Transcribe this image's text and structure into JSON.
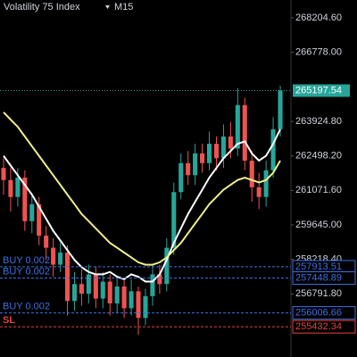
{
  "chart_data": {
    "type": "candlestick",
    "title": "Volatility 75 Index",
    "timeframe": "M15",
    "ylim": [
      254184,
      268943
    ],
    "yticks": [
      {
        "value": 268204.6,
        "label": "268204.60"
      },
      {
        "value": 266778,
        "label": "266778.00"
      },
      {
        "value": 263924.8,
        "label": "263924.80"
      },
      {
        "value": 262498.2,
        "label": "262498.20"
      },
      {
        "value": 261071.6,
        "label": "261071.60"
      },
      {
        "value": 259645,
        "label": "259645.00"
      },
      {
        "value": 258218.4,
        "label": "258218.40"
      },
      {
        "value": 256791.8,
        "label": "256791.80"
      }
    ],
    "up_color": "#26a69a",
    "down_color": "#ef5350",
    "open": [
      262000,
      261500,
      260800,
      261600,
      259800,
      260500,
      259200,
      258700,
      258000,
      258500,
      256500,
      257200,
      256800,
      257600,
      256600,
      257300,
      256400,
      257100,
      256200,
      256900,
      255800,
      256700,
      257600,
      257200,
      258700,
      261000,
      262200,
      261700,
      262600,
      262200,
      263000,
      262400,
      263300,
      262800,
      264600,
      262300,
      261200,
      260800,
      261900,
      263600
    ],
    "high": [
      262400,
      262000,
      262000,
      261900,
      260900,
      260800,
      259600,
      259100,
      258900,
      258800,
      257700,
      257800,
      258000,
      257900,
      257700,
      257600,
      257500,
      257400,
      257400,
      257100,
      257000,
      258000,
      258000,
      259100,
      261400,
      262600,
      262700,
      263000,
      263000,
      263500,
      263300,
      263800,
      263900,
      265300,
      264900,
      262700,
      261800,
      262300,
      264100,
      265400
    ],
    "low": [
      260900,
      260200,
      260400,
      259400,
      259300,
      258800,
      258200,
      257500,
      257700,
      255900,
      256100,
      256300,
      256400,
      256200,
      256200,
      255900,
      256000,
      255800,
      255900,
      255100,
      255500,
      256300,
      256800,
      256900,
      258400,
      260700,
      261300,
      261300,
      261800,
      261900,
      261900,
      262000,
      262400,
      262500,
      261900,
      260600,
      260300,
      260400,
      261600,
      263300
    ],
    "close": [
      261500,
      260800,
      261600,
      259800,
      260500,
      259200,
      258700,
      258000,
      258500,
      256500,
      257200,
      256800,
      257600,
      256600,
      257300,
      256400,
      257100,
      256200,
      256900,
      255800,
      256700,
      257600,
      257200,
      258700,
      261000,
      262200,
      261700,
      262600,
      262200,
      263000,
      262400,
      263300,
      262800,
      264600,
      262300,
      261200,
      260800,
      261900,
      263600,
      265197.54
    ],
    "series": [
      {
        "color": "#ffffff",
        "values": [
          262500,
          262100,
          261700,
          261300,
          260900,
          260400,
          259900,
          259400,
          259000,
          258600,
          258200,
          257900,
          257700,
          257600,
          257600,
          257700,
          257500,
          257400,
          257600,
          257500,
          257300,
          257300,
          257600,
          258200,
          258900,
          259500,
          260100,
          260600,
          261100,
          261600,
          262000,
          262400,
          262700,
          263000,
          263100,
          262600,
          262300,
          262500,
          263000,
          263600
        ]
      },
      {
        "color": "#f0ee8a",
        "values": [
          264300,
          264000,
          263700,
          263300,
          262900,
          262500,
          262100,
          261700,
          261300,
          260900,
          260500,
          260100,
          259800,
          259500,
          259200,
          258900,
          258700,
          258500,
          258300,
          258100,
          258000,
          258000,
          258100,
          258300,
          258600,
          258900,
          259300,
          259700,
          260100,
          260500,
          260800,
          261100,
          261300,
          261500,
          261600,
          261500,
          261400,
          261500,
          261800,
          262300
        ]
      }
    ],
    "current_price": 265197.54,
    "current_color": "#26a69a",
    "order_lines": [
      {
        "label": "BUY 0.002",
        "value": 257913.51,
        "color": "#3f6fe0"
      },
      {
        "label": "BUY 0.002",
        "value": 257448.89,
        "color": "#3f6fe0"
      },
      {
        "label": "BUY 0.002",
        "value": 256006.66,
        "color": "#3f6fe0"
      },
      {
        "label": "SL",
        "value": 255432.34,
        "color": "#e0453c"
      }
    ]
  }
}
